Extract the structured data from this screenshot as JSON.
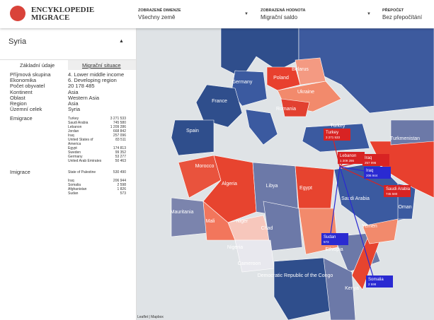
{
  "header": {
    "logo_line1": "ENCYKLOPEDIE",
    "logo_line2": "MIGRACE",
    "selectors": [
      {
        "label": "ZOBRAZENÉ DIMENZE",
        "value": "Všechny země"
      },
      {
        "label": "ZOBRAZENÁ HODNOTA",
        "value": "Migrační saldo"
      },
      {
        "label": "PŘEPOČET",
        "value": "Bez přepočítání"
      }
    ]
  },
  "panel": {
    "title": "Syria",
    "tabs": [
      "Základní údaje",
      "Migrační situace"
    ],
    "fields": [
      {
        "label": "Příjmová skupina",
        "value": "4. Lower middle income"
      },
      {
        "label": "Ekonomika",
        "value": "6. Developing region"
      },
      {
        "label": "Počet obyvatel",
        "value": "20 178 485"
      },
      {
        "label": "Kontinent",
        "value": "Asia"
      },
      {
        "label": "Oblast",
        "value": "Western Asia"
      },
      {
        "label": "Region",
        "value": "Asia"
      },
      {
        "label": "Územní celek",
        "value": "Syria"
      }
    ],
    "emigration": {
      "label": "Emigrace",
      "rows": [
        {
          "country": "Turkey",
          "value": "3 271 533"
        },
        {
          "country": "Saudi Arabia",
          "value": "745 580"
        },
        {
          "country": "Lebanon",
          "value": "1 209 286"
        },
        {
          "country": "Jordan",
          "value": "668 842"
        },
        {
          "country": "Iraq",
          "value": "257 096"
        },
        {
          "country": "United States of America",
          "value": "83 511"
        },
        {
          "country": "Egypt",
          "value": "174 813"
        },
        {
          "country": "Sweden",
          "value": "99 352"
        },
        {
          "country": "Germany",
          "value": "53 277"
        },
        {
          "country": "United Arab Emirates",
          "value": "50 463"
        }
      ]
    },
    "immigration": {
      "label": "Imigrace",
      "rows": [
        {
          "country": "State of Palestine",
          "value": "530 490"
        },
        {
          "country": "Iraq",
          "value": "206 944"
        },
        {
          "country": "Somalia",
          "value": "2 598"
        },
        {
          "country": "Afghanistan",
          "value": "1 826"
        },
        {
          "country": "Sudan",
          "value": "573"
        }
      ]
    }
  },
  "map": {
    "labels": [
      "Germany",
      "Poland",
      "Belarus",
      "Ukraine",
      "France",
      "Romania",
      "Spain",
      "Turkey",
      "Morocco",
      "Algeria",
      "Libya",
      "Egypt",
      "Mauritania",
      "Mali",
      "Niger",
      "Chad",
      "Nigeria",
      "Ethiopia",
      "Saudi Arabia",
      "Yemen",
      "Oman",
      "Turkmenistan",
      "Democratic Republic of the Congo",
      "Cameroon",
      "Kenya"
    ],
    "flows": [
      {
        "country": "Turkey",
        "value": "3 271 533",
        "kind": "out"
      },
      {
        "country": "Lebanon",
        "value": "1 209 286",
        "kind": "out"
      },
      {
        "country": "Iraq",
        "value": "257 096",
        "kind": "out"
      },
      {
        "country": "Saudi Arabia",
        "value": "745 580",
        "kind": "out"
      },
      {
        "country": "Iraq",
        "value": "206 944",
        "kind": "in"
      },
      {
        "country": "Sudan",
        "value": "573",
        "kind": "in"
      },
      {
        "country": "Somalia",
        "value": "2 598",
        "kind": "in"
      }
    ],
    "attribution": "Leaflet | Mapbox"
  }
}
